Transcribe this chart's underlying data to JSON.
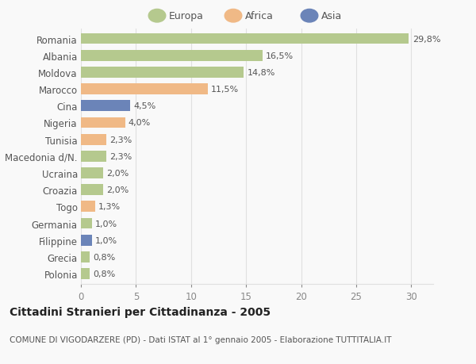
{
  "categories": [
    "Romania",
    "Albania",
    "Moldova",
    "Marocco",
    "Cina",
    "Nigeria",
    "Tunisia",
    "Macedonia d/N.",
    "Ucraina",
    "Croazia",
    "Togo",
    "Germania",
    "Filippine",
    "Grecia",
    "Polonia"
  ],
  "values": [
    29.8,
    16.5,
    14.8,
    11.5,
    4.5,
    4.0,
    2.3,
    2.3,
    2.0,
    2.0,
    1.3,
    1.0,
    1.0,
    0.8,
    0.8
  ],
  "labels": [
    "29,8%",
    "16,5%",
    "14,8%",
    "11,5%",
    "4,5%",
    "4,0%",
    "2,3%",
    "2,3%",
    "2,0%",
    "2,0%",
    "1,3%",
    "1,0%",
    "1,0%",
    "0,8%",
    "0,8%"
  ],
  "colors": [
    "#b5c98e",
    "#b5c98e",
    "#b5c98e",
    "#f0b986",
    "#6b84b8",
    "#f0b986",
    "#f0b986",
    "#b5c98e",
    "#b5c98e",
    "#b5c98e",
    "#f0b986",
    "#b5c98e",
    "#6b84b8",
    "#b5c98e",
    "#b5c98e"
  ],
  "legend_labels": [
    "Europa",
    "Africa",
    "Asia"
  ],
  "legend_colors": [
    "#b5c98e",
    "#f0b986",
    "#6b84b8"
  ],
  "title": "Cittadini Stranieri per Cittadinanza - 2005",
  "subtitle": "COMUNE DI VIGODARZERE (PD) - Dati ISTAT al 1° gennaio 2005 - Elaborazione TUTTITALIA.IT",
  "xlim": [
    0,
    32
  ],
  "xticks": [
    0,
    5,
    10,
    15,
    20,
    25,
    30
  ],
  "background_color": "#f9f9f9",
  "grid_color": "#e0e0e0",
  "bar_height": 0.65,
  "title_fontsize": 10,
  "subtitle_fontsize": 7.5,
  "label_fontsize": 8,
  "tick_fontsize": 8.5,
  "legend_fontsize": 9
}
